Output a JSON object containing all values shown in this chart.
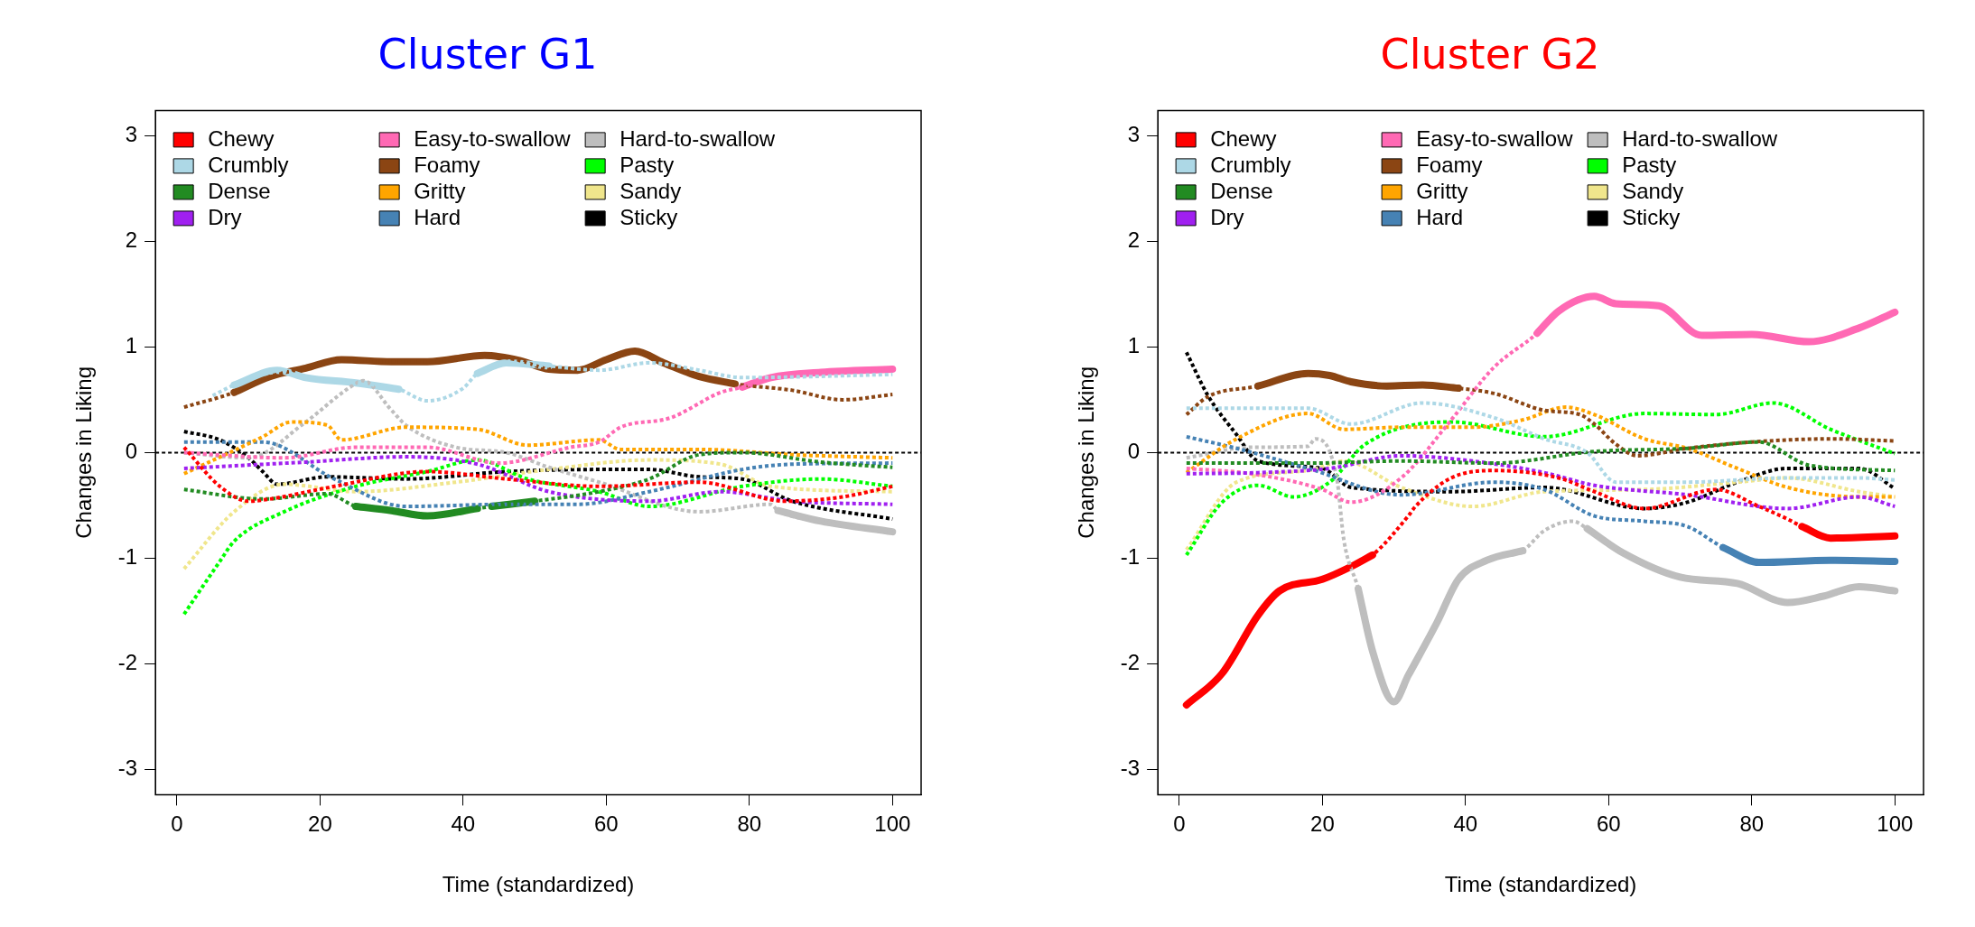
{
  "chart_data": [
    {
      "type": "line",
      "title": "Cluster G1",
      "xlabel": "Time (standardized)",
      "ylabel": "Changes in Liking",
      "xlim": [
        -3,
        104
      ],
      "ylim": [
        -3.24,
        3.24
      ],
      "xticks": [
        0,
        20,
        40,
        60,
        80,
        100
      ],
      "yticks": [
        -3,
        -2,
        -1,
        0,
        1,
        2,
        3
      ],
      "legend": "top left",
      "ref_lines": [
        {
          "axis": "y",
          "value": 0,
          "color": "#000000",
          "line_style": "dotted"
        }
      ],
      "series": [
        {
          "name": "Chewy",
          "color": "#ff0000",
          "line_style": "dotted",
          "x": [
            1,
            6,
            10,
            13,
            22,
            35,
            46,
            59,
            73,
            85,
            93,
            100
          ],
          "values": [
            0.05,
            -0.32,
            -0.46,
            -0.44,
            -0.32,
            -0.18,
            -0.25,
            -0.32,
            -0.28,
            -0.46,
            -0.42,
            -0.32
          ]
        },
        {
          "name": "Crumbly",
          "color": "#add8e6",
          "line_style": "dotted",
          "x": [
            5,
            8,
            14,
            18,
            25,
            31,
            35,
            40,
            42,
            46,
            52,
            59,
            66,
            73,
            79,
            100
          ],
          "values": [
            0.54,
            0.64,
            0.78,
            0.71,
            0.66,
            0.6,
            0.49,
            0.61,
            0.75,
            0.85,
            0.82,
            0.78,
            0.85,
            0.78,
            0.71,
            0.74
          ]
        },
        {
          "name": "Dense",
          "color": "#228b22",
          "line_style": "dotted",
          "x": [
            1,
            12,
            21,
            25,
            30,
            35,
            42,
            44,
            50,
            59,
            66,
            73,
            79,
            90,
            100
          ],
          "values": [
            -0.35,
            -0.44,
            -0.39,
            -0.51,
            -0.55,
            -0.6,
            -0.53,
            -0.51,
            -0.46,
            -0.37,
            -0.25,
            -0.02,
            0,
            -0.09,
            -0.14
          ]
        },
        {
          "name": "Dry",
          "color": "#a020f0",
          "line_style": "dotted",
          "x": [
            1,
            18,
            32,
            42,
            52,
            66,
            76,
            86,
            100
          ],
          "values": [
            -0.15,
            -0.09,
            -0.04,
            -0.11,
            -0.37,
            -0.46,
            -0.37,
            -0.46,
            -0.49
          ]
        },
        {
          "name": "Easy-to-swallow",
          "color": "#ff69b4",
          "line_style": "dotted",
          "x": [
            1,
            15,
            25,
            35,
            45,
            55,
            59,
            62,
            69,
            76,
            79,
            83,
            90,
            100
          ],
          "values": [
            0,
            -0.05,
            0.05,
            0.05,
            -0.1,
            0.05,
            0.1,
            0.24,
            0.33,
            0.57,
            0.62,
            0.71,
            0.76,
            0.79
          ]
        },
        {
          "name": "Foamy",
          "color": "#8b4513",
          "line_style": "dotted",
          "x": [
            1,
            8,
            13,
            18,
            23,
            30,
            35,
            43,
            48,
            52,
            56,
            60,
            64,
            68,
            73,
            78,
            86,
            93,
            100
          ],
          "values": [
            0.43,
            0.57,
            0.72,
            0.8,
            0.88,
            0.86,
            0.86,
            0.92,
            0.87,
            0.79,
            0.78,
            0.88,
            0.96,
            0.85,
            0.72,
            0.65,
            0.59,
            0.5,
            0.55
          ]
        },
        {
          "name": "Gritty",
          "color": "#ffa500",
          "line_style": "dotted",
          "x": [
            1,
            12,
            16,
            21,
            23,
            32,
            42,
            49,
            59,
            62,
            73,
            86,
            100
          ],
          "values": [
            -0.2,
            0.15,
            0.29,
            0.26,
            0.12,
            0.24,
            0.22,
            0.07,
            0.12,
            0.03,
            0.03,
            -0.02,
            -0.05
          ]
        },
        {
          "name": "Hard",
          "color": "#4682b4",
          "line_style": "dotted",
          "x": [
            1,
            12,
            22,
            32,
            46,
            56,
            66,
            79,
            86,
            100
          ],
          "values": [
            0.1,
            0.1,
            -0.25,
            -0.51,
            -0.49,
            -0.49,
            -0.37,
            -0.16,
            -0.11,
            -0.1
          ]
        },
        {
          "name": "Hard-to-swallow",
          "color": "#bebebe",
          "line_style": "dotted",
          "x": [
            1,
            10,
            18,
            24,
            26,
            30,
            32,
            39,
            46,
            52,
            59,
            73,
            83,
            84,
            90,
            100
          ],
          "values": [
            0,
            -0.05,
            0.29,
            0.61,
            0.68,
            0.4,
            0.26,
            0.05,
            0,
            -0.14,
            -0.28,
            -0.56,
            -0.49,
            -0.55,
            -0.65,
            -0.75
          ]
        },
        {
          "name": "Pasty",
          "color": "#00ff00",
          "line_style": "dotted",
          "x": [
            1,
            6,
            8,
            15,
            25,
            35,
            42,
            49,
            59,
            66,
            79,
            90,
            100
          ],
          "values": [
            -1.53,
            -1.03,
            -0.84,
            -0.56,
            -0.32,
            -0.18,
            -0.07,
            -0.25,
            -0.37,
            -0.51,
            -0.32,
            -0.25,
            -0.32
          ]
        },
        {
          "name": "Sandy",
          "color": "#f0e68c",
          "line_style": "dotted",
          "x": [
            1,
            8,
            15,
            25,
            39,
            52,
            66,
            76,
            83,
            100
          ],
          "values": [
            -1.1,
            -0.56,
            -0.3,
            -0.37,
            -0.28,
            -0.16,
            -0.07,
            -0.11,
            -0.32,
            -0.37
          ]
        },
        {
          "name": "Sticky",
          "color": "#000000",
          "line_style": "dotted",
          "x": [
            1,
            6,
            10,
            12,
            14,
            21,
            32,
            46,
            59,
            66,
            73,
            79,
            86,
            100
          ],
          "values": [
            0.2,
            0.12,
            -0.05,
            -0.18,
            -0.3,
            -0.23,
            -0.25,
            -0.18,
            -0.16,
            -0.16,
            -0.23,
            -0.25,
            -0.46,
            -0.63
          ]
        },
        {
          "color": "#add8e6",
          "line_style": "solid",
          "x": [
            8,
            14,
            18,
            25,
            31
          ],
          "values": [
            0.64,
            0.78,
            0.71,
            0.66,
            0.6
          ]
        },
        {
          "color": "#add8e6",
          "line_style": "solid",
          "x": [
            42,
            46,
            52
          ],
          "values": [
            0.75,
            0.85,
            0.82
          ]
        },
        {
          "color": "#228b22",
          "line_style": "solid",
          "x": [
            25,
            30,
            35,
            42
          ],
          "values": [
            -0.51,
            -0.55,
            -0.6,
            -0.53
          ]
        },
        {
          "color": "#228b22",
          "line_style": "solid",
          "x": [
            44,
            50
          ],
          "values": [
            -0.51,
            -0.46
          ]
        },
        {
          "color": "#8b4513",
          "line_style": "solid",
          "x": [
            8,
            13,
            18,
            23,
            30,
            35,
            43,
            48,
            52,
            56,
            60,
            64,
            68,
            73,
            78
          ],
          "values": [
            0.57,
            0.72,
            0.8,
            0.88,
            0.86,
            0.86,
            0.92,
            0.87,
            0.79,
            0.78,
            0.88,
            0.96,
            0.85,
            0.72,
            0.65
          ]
        },
        {
          "color": "#ff69b4",
          "line_style": "solid",
          "x": [
            79,
            83,
            90,
            100
          ],
          "values": [
            0.62,
            0.71,
            0.76,
            0.79
          ]
        },
        {
          "color": "#bebebe",
          "line_style": "solid",
          "x": [
            84,
            90,
            100
          ],
          "values": [
            -0.55,
            -0.65,
            -0.75
          ]
        }
      ]
    },
    {
      "type": "line",
      "title": "Cluster G2",
      "xlabel": "Time (standardized)",
      "ylabel": "Changes in Liking",
      "xlim": [
        -3,
        104
      ],
      "ylim": [
        -3.24,
        3.24
      ],
      "xticks": [
        0,
        20,
        40,
        60,
        80,
        100
      ],
      "yticks": [
        -3,
        -2,
        -1,
        0,
        1,
        2,
        3
      ],
      "legend": "top left",
      "ref_lines": [
        {
          "axis": "y",
          "value": 0,
          "color": "#000000",
          "line_style": "dotted"
        }
      ],
      "series": [
        {
          "name": "Chewy",
          "color": "#ff0000",
          "line_style": "dotted",
          "x": [
            1,
            6,
            11,
            14,
            20,
            24,
            27,
            32,
            33,
            38,
            44,
            53,
            58,
            65,
            75,
            81,
            85,
            87,
            91,
            100
          ],
          "values": [
            -2.39,
            -2.09,
            -1.54,
            -1.31,
            -1.2,
            -1.08,
            -0.97,
            -0.6,
            -0.51,
            -0.24,
            -0.17,
            -0.24,
            -0.37,
            -0.53,
            -0.35,
            -0.51,
            -0.63,
            -0.7,
            -0.81,
            -0.79
          ]
        },
        {
          "name": "Crumbly",
          "color": "#add8e6",
          "line_style": "dotted",
          "x": [
            1,
            18,
            24,
            34,
            44,
            51,
            57,
            61,
            71,
            85,
            95,
            100
          ],
          "values": [
            0.42,
            0.42,
            0.27,
            0.47,
            0.33,
            0.13,
            0,
            -0.28,
            -0.28,
            -0.24,
            -0.24,
            -0.26
          ]
        },
        {
          "name": "Dense",
          "color": "#228b22",
          "line_style": "dotted",
          "x": [
            1,
            18,
            31,
            44,
            58,
            71,
            81,
            88,
            100
          ],
          "values": [
            -0.1,
            -0.1,
            -0.08,
            -0.1,
            0.01,
            0.04,
            0.1,
            -0.12,
            -0.17
          ]
        },
        {
          "name": "Dry",
          "color": "#a020f0",
          "line_style": "dotted",
          "x": [
            1,
            11,
            21,
            31,
            41,
            51,
            58,
            71,
            85,
            95,
            100
          ],
          "values": [
            -0.2,
            -0.19,
            -0.15,
            -0.03,
            -0.08,
            -0.19,
            -0.31,
            -0.4,
            -0.53,
            -0.42,
            -0.51
          ]
        },
        {
          "name": "Easy-to-swallow",
          "color": "#ff69b4",
          "line_style": "dotted",
          "x": [
            1,
            10,
            20,
            24,
            31,
            38,
            44,
            50,
            53,
            58,
            61,
            67,
            73,
            80,
            88,
            95,
            100
          ],
          "values": [
            -0.15,
            -0.2,
            -0.35,
            -0.47,
            -0.24,
            0.31,
            0.81,
            1.13,
            1.34,
            1.48,
            1.41,
            1.39,
            1.11,
            1.12,
            1.05,
            1.18,
            1.33
          ]
        },
        {
          "name": "Foamy",
          "color": "#8b4513",
          "line_style": "dotted",
          "x": [
            1,
            4,
            11,
            18,
            21,
            24,
            29,
            34,
            39,
            44,
            51,
            56,
            58,
            61,
            64,
            71,
            80,
            91,
            100
          ],
          "values": [
            0.36,
            0.53,
            0.63,
            0.75,
            0.73,
            0.67,
            0.63,
            0.64,
            0.61,
            0.56,
            0.4,
            0.36,
            0.27,
            0.08,
            -0.03,
            0.04,
            0.1,
            0.13,
            0.11
          ]
        },
        {
          "name": "Gritty",
          "color": "#ffa500",
          "line_style": "dotted",
          "x": [
            1,
            8,
            18,
            23,
            31,
            41,
            48,
            54,
            58,
            65,
            71,
            78,
            85,
            95,
            100
          ],
          "values": [
            -0.19,
            0.13,
            0.37,
            0.22,
            0.24,
            0.24,
            0.31,
            0.43,
            0.36,
            0.13,
            0.04,
            -0.15,
            -0.33,
            -0.42,
            -0.42
          ]
        },
        {
          "name": "Hard",
          "color": "#4682b4",
          "line_style": "dotted",
          "x": [
            1,
            8,
            18,
            31,
            44,
            51,
            58,
            65,
            71,
            75,
            76,
            81,
            91,
            100
          ],
          "values": [
            0.15,
            0.04,
            -0.15,
            -0.4,
            -0.28,
            -0.35,
            -0.6,
            -0.65,
            -0.7,
            -0.86,
            -0.9,
            -1.04,
            -1.02,
            -1.03
          ]
        },
        {
          "name": "Hard-to-swallow",
          "color": "#bebebe",
          "line_style": "dotted",
          "x": [
            1,
            10,
            18,
            19,
            22,
            23,
            25,
            27,
            30,
            32,
            36,
            39,
            43,
            48,
            51,
            55,
            57,
            62,
            70,
            78,
            85,
            90,
            95,
            100
          ],
          "values": [
            -0.05,
            0.05,
            0.06,
            0.13,
            -0.24,
            -0.83,
            -1.29,
            -1.88,
            -2.36,
            -2.11,
            -1.61,
            -1.2,
            -1.02,
            -0.93,
            -0.74,
            -0.65,
            -0.72,
            -0.95,
            -1.18,
            -1.24,
            -1.42,
            -1.36,
            -1.27,
            -1.31
          ]
        },
        {
          "name": "Pasty",
          "color": "#00ff00",
          "line_style": "dotted",
          "x": [
            1,
            6,
            11,
            16,
            21,
            26,
            38,
            51,
            65,
            75,
            83,
            91,
            100
          ],
          "values": [
            -0.97,
            -0.47,
            -0.31,
            -0.42,
            -0.28,
            0.08,
            0.29,
            0.15,
            0.37,
            0.36,
            0.47,
            0.22,
            -0.01
          ]
        },
        {
          "name": "Sandy",
          "color": "#f0e68c",
          "line_style": "dotted",
          "x": [
            1,
            8,
            18,
            23,
            31,
            41,
            51,
            65,
            78,
            85,
            95,
            100
          ],
          "values": [
            -0.92,
            -0.28,
            -0.17,
            -0.08,
            -0.33,
            -0.51,
            -0.37,
            -0.35,
            -0.28,
            -0.24,
            -0.37,
            -0.42
          ]
        },
        {
          "name": "Sticky",
          "color": "#000000",
          "line_style": "dotted",
          "x": [
            1,
            4,
            8,
            11,
            20,
            24,
            38,
            51,
            65,
            71,
            78,
            85,
            95,
            100
          ],
          "values": [
            0.95,
            0.54,
            0.17,
            -0.08,
            -0.15,
            -0.33,
            -0.37,
            -0.33,
            -0.53,
            -0.47,
            -0.28,
            -0.15,
            -0.15,
            -0.34
          ]
        },
        {
          "color": "#ff0000",
          "line_style": "solid",
          "x": [
            1,
            6,
            11,
            14,
            20,
            24,
            27
          ],
          "values": [
            -2.39,
            -2.09,
            -1.54,
            -1.31,
            -1.2,
            -1.08,
            -0.97
          ]
        },
        {
          "color": "#ff0000",
          "line_style": "solid",
          "x": [
            87,
            91,
            100
          ],
          "values": [
            -0.7,
            -0.81,
            -0.79
          ]
        },
        {
          "color": "#ff69b4",
          "line_style": "solid",
          "x": [
            50,
            53,
            58,
            61,
            67,
            73,
            80,
            88,
            95,
            100
          ],
          "values": [
            1.13,
            1.34,
            1.48,
            1.41,
            1.39,
            1.11,
            1.12,
            1.05,
            1.18,
            1.33
          ]
        },
        {
          "color": "#8b4513",
          "line_style": "solid",
          "x": [
            11,
            18,
            21,
            24,
            29,
            34,
            39
          ],
          "values": [
            0.63,
            0.75,
            0.73,
            0.67,
            0.63,
            0.64,
            0.61
          ]
        },
        {
          "color": "#4682b4",
          "line_style": "solid",
          "x": [
            76,
            81,
            91,
            100
          ],
          "values": [
            -0.9,
            -1.04,
            -1.02,
            -1.03
          ]
        },
        {
          "color": "#bebebe",
          "line_style": "solid",
          "x": [
            25,
            27,
            30,
            32,
            36,
            39,
            43,
            48
          ],
          "values": [
            -1.29,
            -1.88,
            -2.36,
            -2.11,
            -1.61,
            -1.2,
            -1.02,
            -0.93
          ]
        },
        {
          "color": "#bebebe",
          "line_style": "solid",
          "x": [
            57,
            62,
            70,
            78,
            85,
            90,
            95,
            100
          ],
          "values": [
            -0.72,
            -0.95,
            -1.18,
            -1.24,
            -1.42,
            -1.36,
            -1.27,
            -1.31
          ]
        }
      ]
    }
  ]
}
